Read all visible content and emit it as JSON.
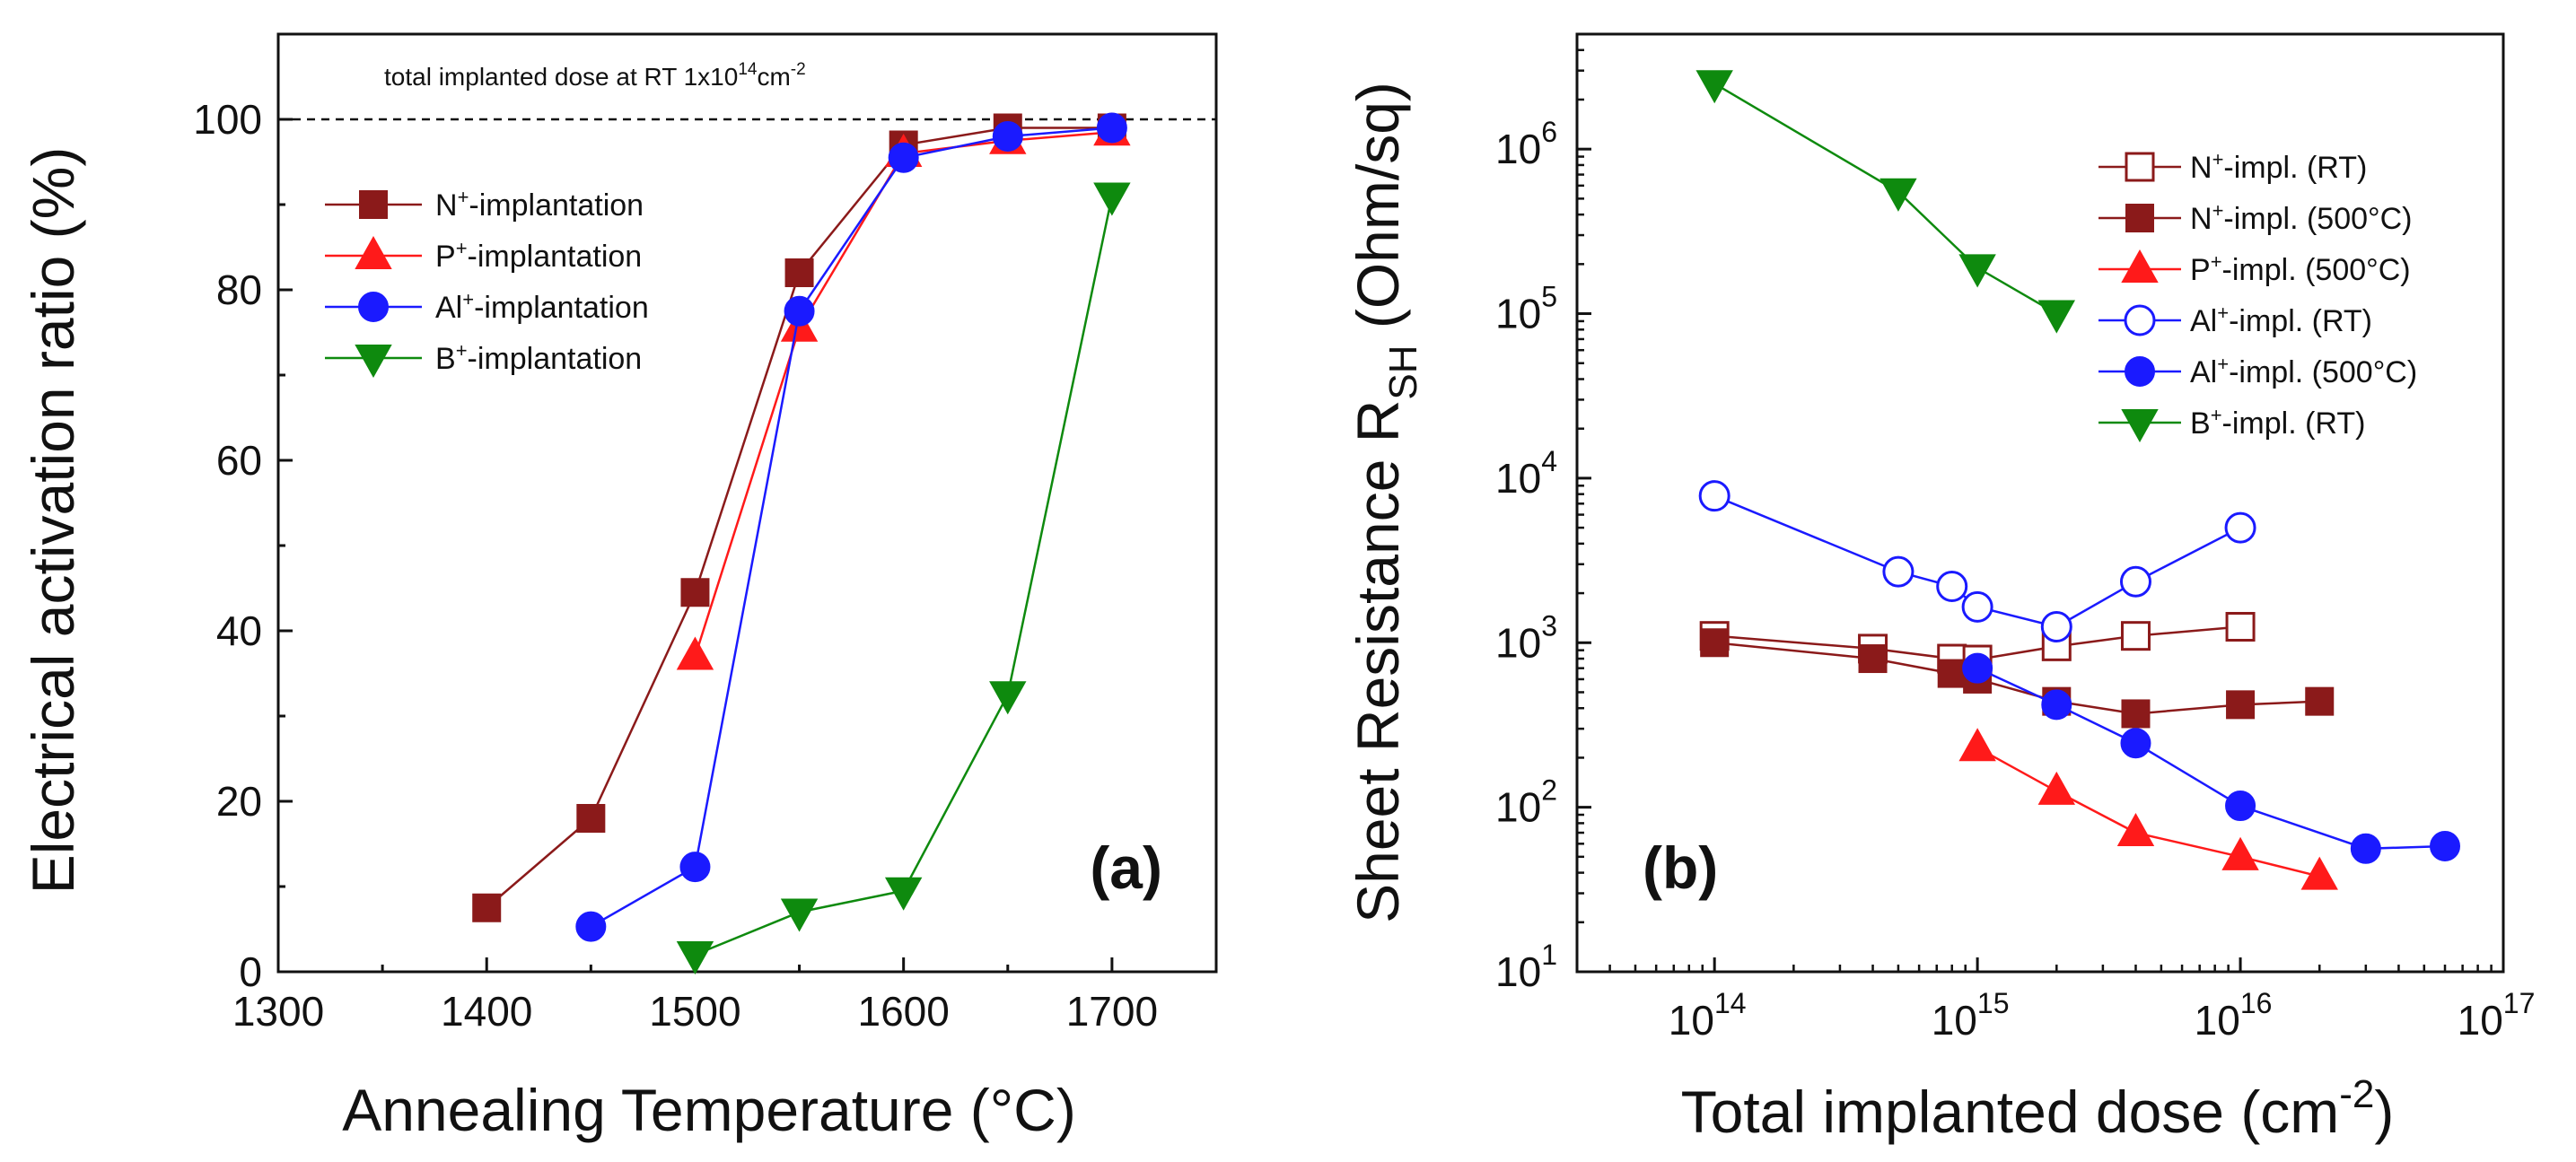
{
  "chart_data": [
    {
      "type": "line",
      "panel_label": "(a)",
      "xlabel": "Annealing Temperature (°C)",
      "ylabel": "Electrical activation ratio (%)",
      "xlim": [
        1300,
        1750
      ],
      "ylim": [
        0,
        110
      ],
      "xticks": [
        "1300",
        "1400",
        "1500",
        "1600",
        "1700"
      ],
      "yticks": [
        "0",
        "20",
        "40",
        "60",
        "80",
        "100"
      ],
      "reference_line": {
        "y": 100,
        "label_main": "total implanted dose at RT 1x10",
        "label_exp1": "14",
        "label_unit": "cm",
        "label_exp2": "-2"
      },
      "series": [
        {
          "name": "N+-implantation",
          "label_main": "N",
          "label_sup": "+",
          "label_rest": "-implantation",
          "color": "#8B1A1A",
          "marker": "square",
          "filled": true,
          "x": [
            1400,
            1450,
            1500,
            1550,
            1600,
            1650,
            1700
          ],
          "y": [
            7.5,
            18,
            44.5,
            82,
            97,
            99,
            99
          ]
        },
        {
          "name": "P+-implantation",
          "label_main": "P",
          "label_sup": "+",
          "label_rest": "-implantation",
          "color": "#FF1A1A",
          "marker": "triangle-up",
          "filled": true,
          "x": [
            1500,
            1550,
            1600,
            1650,
            1700
          ],
          "y": [
            37,
            75.5,
            96,
            97.5,
            98.5
          ]
        },
        {
          "name": "Al+-implantation",
          "label_main": "Al",
          "label_sup": "+",
          "label_rest": "-implantation",
          "color": "#1A1AFF",
          "marker": "circle",
          "filled": true,
          "x": [
            1450,
            1500,
            1550,
            1600,
            1650,
            1700
          ],
          "y": [
            5.3,
            12.3,
            77.5,
            95.5,
            98,
            99
          ]
        },
        {
          "name": "B+-implantation",
          "label_main": "B",
          "label_sup": "+",
          "label_rest": "-implantation",
          "color": "#0E8A0E",
          "marker": "triangle-down",
          "filled": true,
          "x": [
            1500,
            1550,
            1600,
            1650,
            1700
          ],
          "y": [
            2,
            7,
            9.5,
            32.5,
            91
          ]
        }
      ]
    },
    {
      "type": "line",
      "scale": "log-log",
      "panel_label": "(b)",
      "xlabel_main": "Total implanted dose (cm",
      "xlabel_exp": "-2",
      "xlabel_close": ")",
      "ylabel_main": "Sheet Resistance R",
      "ylabel_sub": "SH",
      "ylabel_unit": " (Ohm/sq)",
      "xlim": [
        30000000000000.0,
        1e+17
      ],
      "ylim": [
        10,
        5000000.0
      ],
      "xticks": [
        {
          "base": "10",
          "exp": "14"
        },
        {
          "base": "10",
          "exp": "15"
        },
        {
          "base": "10",
          "exp": "16"
        },
        {
          "base": "10",
          "exp": "17"
        }
      ],
      "yticks": [
        {
          "base": "10",
          "exp": "1"
        },
        {
          "base": "10",
          "exp": "2"
        },
        {
          "base": "10",
          "exp": "3"
        },
        {
          "base": "10",
          "exp": "4"
        },
        {
          "base": "10",
          "exp": "5"
        },
        {
          "base": "10",
          "exp": "6"
        }
      ],
      "series": [
        {
          "name": "N+-impl. (RT)",
          "label_main": "N",
          "label_sup": "+",
          "label_rest": "-impl. (RT)",
          "color": "#8B1A1A",
          "marker": "square",
          "filled": false,
          "x": [
            100000000000000.0,
            400000000000000.0,
            800000000000000.0,
            1000000000000000.0,
            2000000000000000.0,
            4000000000000000.0,
            1e+16
          ],
          "y": [
            1100,
            920,
            800,
            790,
            950,
            1100,
            1250
          ]
        },
        {
          "name": "N+-impl. (500°C)",
          "label_main": "N",
          "label_sup": "+",
          "label_rest": "-impl. (500°C)",
          "color": "#8B1A1A",
          "marker": "square",
          "filled": true,
          "x": [
            100000000000000.0,
            400000000000000.0,
            800000000000000.0,
            1000000000000000.0,
            2000000000000000.0,
            4000000000000000.0,
            1e+16,
            2e+16
          ],
          "y": [
            1000,
            800,
            650,
            600,
            440,
            370,
            420,
            440
          ]
        },
        {
          "name": "P+-impl. (500°C)",
          "label_main": "P",
          "label_sup": "+",
          "label_rest": "-impl. (500°C)",
          "color": "#FF1A1A",
          "marker": "triangle-up",
          "filled": true,
          "x": [
            1000000000000000.0,
            2000000000000000.0,
            4000000000000000.0,
            1e+16,
            2e+16
          ],
          "y": [
            230,
            125,
            70,
            50,
            38
          ]
        },
        {
          "name": "Al+-impl. (RT)",
          "label_main": "Al",
          "label_sup": "+",
          "label_rest": "-impl. (RT)",
          "color": "#1A1AFF",
          "marker": "circle",
          "filled": false,
          "x": [
            100000000000000.0,
            500000000000000.0,
            800000000000000.0,
            1000000000000000.0,
            2000000000000000.0,
            4000000000000000.0,
            1e+16
          ],
          "y": [
            7800,
            2700,
            2200,
            1650,
            1250,
            2350,
            5000
          ]
        },
        {
          "name": "Al+-impl. (500°C)",
          "label_main": "Al",
          "label_sup": "+",
          "label_rest": "-impl. (500°C)",
          "color": "#1A1AFF",
          "marker": "circle",
          "filled": true,
          "x": [
            1000000000000000.0,
            2000000000000000.0,
            4000000000000000.0,
            1e+16,
            3e+16,
            6e+16
          ],
          "y": [
            700,
            420,
            245,
            102,
            56,
            58
          ]
        },
        {
          "name": "B+-impl. (RT)",
          "label_main": "B",
          "label_sup": "+",
          "label_rest": "-impl.  (RT)",
          "color": "#0E8A0E",
          "marker": "triangle-down",
          "filled": true,
          "x": [
            100000000000000.0,
            500000000000000.0,
            1000000000000000.0,
            2000000000000000.0
          ],
          "y": [
            2500000,
            550000,
            190000,
            100000
          ]
        }
      ]
    }
  ]
}
